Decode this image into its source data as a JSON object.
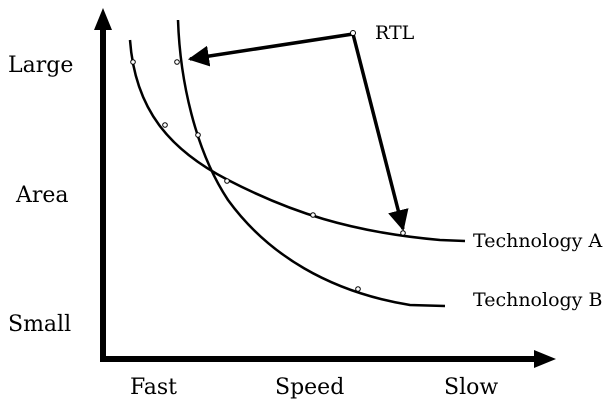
{
  "y_axis": {
    "labels": [
      "Large",
      "Area",
      "Small"
    ]
  },
  "x_axis": {
    "labels": [
      "Fast",
      "Speed",
      "Slow"
    ]
  },
  "annotation": {
    "label": "RTL"
  },
  "curves": [
    {
      "label": "Technology A"
    },
    {
      "label": "Technology B"
    }
  ],
  "colors": {
    "ink": "#000000",
    "background": "#ffffff"
  }
}
